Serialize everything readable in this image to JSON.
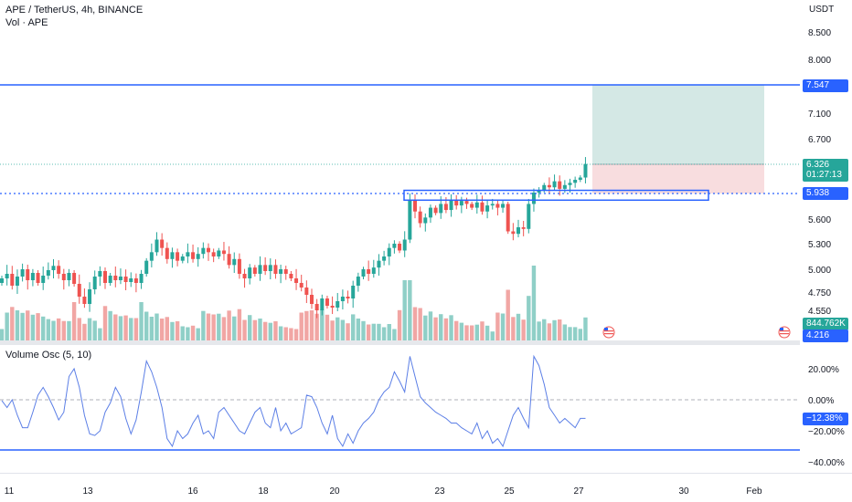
{
  "header": {
    "symbol": "APE / TetherUS, 4h, BINANCE",
    "vol_label": "Vol · APE",
    "currency": "USDT",
    "osc_label": "Volume Osc (5, 10)"
  },
  "colors": {
    "up": "#26a69a",
    "down": "#ef5350",
    "vol_up": "#8fcfc7",
    "vol_down": "#f1a6a4",
    "level_line": "#2962ff",
    "osc_line": "#5c7fe6",
    "target_zone": "#cfe5e2",
    "stop_zone": "#f7d9dc"
  },
  "tags": {
    "resistance": "7.547",
    "last_price": "6.326",
    "countdown": "01:27:13",
    "support": "5.938",
    "volume": "844.762K",
    "low_level": "4.216",
    "osc_value": "−12.38%"
  },
  "chart_data": [
    {
      "type": "candlestick",
      "title": "APE / TetherUS, 4h, BINANCE",
      "ylabel": "USDT",
      "y_ticks": [
        "8.500",
        "8.000",
        "7.547",
        "7.100",
        "6.700",
        "6.326",
        "5.938",
        "5.600",
        "5.300",
        "5.000",
        "4.750",
        "4.550",
        "4.216"
      ],
      "x_ticks": [
        "11",
        "13",
        "16",
        "18",
        "20",
        "23",
        "25",
        "27",
        "30",
        "Feb"
      ],
      "levels": {
        "resistance": 7.547,
        "support": 5.938,
        "last": 6.326,
        "bottom": 4.216
      },
      "consolidation_box": {
        "from": 5.85,
        "to": 5.98
      },
      "position": {
        "entry": 6.326,
        "target": 7.547,
        "stop": 5.938
      },
      "closes": [
        4.9,
        4.95,
        4.82,
        4.92,
        5.0,
        4.88,
        4.96,
        4.85,
        4.93,
        4.99,
        5.04,
        4.95,
        4.88,
        4.96,
        4.84,
        4.7,
        4.62,
        4.78,
        4.92,
        4.98,
        4.85,
        4.93,
        4.88,
        4.92,
        4.86,
        4.9,
        4.85,
        4.95,
        5.1,
        5.2,
        5.35,
        5.25,
        5.12,
        5.2,
        5.1,
        5.15,
        5.2,
        5.12,
        5.18,
        5.25,
        5.2,
        5.15,
        5.22,
        5.18,
        5.05,
        5.12,
        4.95,
        4.9,
        5.02,
        4.95,
        5.05,
        4.98,
        5.05,
        4.95,
        5.0,
        4.95,
        4.9,
        4.85,
        4.8,
        4.72,
        4.62,
        4.55,
        4.68,
        4.6,
        4.58,
        4.65,
        4.7,
        4.68,
        4.82,
        4.92,
        5.0,
        4.95,
        5.02,
        5.1,
        5.15,
        5.25,
        5.3,
        5.22,
        5.35,
        5.85,
        5.7,
        5.55,
        5.62,
        5.75,
        5.68,
        5.8,
        5.72,
        5.85,
        5.78,
        5.84,
        5.8,
        5.75,
        5.82,
        5.7,
        5.78,
        5.8,
        5.75,
        5.8,
        5.45,
        5.42,
        5.5,
        5.48,
        5.8,
        5.95,
        5.98,
        6.05,
        6.02,
        6.1,
        6.0,
        6.05,
        6.08,
        6.12,
        6.15,
        6.33
      ],
      "volume_osc_percent": [
        -0.5,
        -5,
        0,
        -10,
        -18,
        -18,
        -8,
        3,
        8,
        2,
        -5,
        -13,
        -8,
        15,
        20,
        8,
        -10,
        -22,
        -23,
        -20,
        -8,
        -2,
        8,
        2,
        -12,
        -22,
        -13,
        5,
        25,
        18,
        8,
        -5,
        -25,
        -30,
        -20,
        -25,
        -22,
        -15,
        -10,
        -22,
        -20,
        -25,
        -8,
        -5,
        -10,
        -15,
        -20,
        -22,
        -15,
        -8,
        -5,
        -15,
        -18,
        -5,
        -20,
        -15,
        -22,
        -20,
        -18,
        3,
        2,
        -5,
        -15,
        -22,
        -10,
        -25,
        -30,
        -22,
        -28,
        -20,
        -15,
        -12,
        -8,
        0,
        5,
        8,
        18,
        12,
        5,
        28,
        15,
        2,
        -2,
        -5,
        -8,
        -10,
        -12,
        -15,
        -15,
        -18,
        -20,
        -22,
        -15,
        -25,
        -20,
        -28,
        -25,
        -30,
        -20,
        -10,
        -5,
        -12,
        -18,
        28,
        22,
        10,
        -5,
        -10,
        -15,
        -12,
        -15,
        -18,
        -12,
        -12
      ],
      "osc_y_ticks": [
        "20.00%",
        "0.00%",
        "−20.00%",
        "−40.00%"
      ]
    }
  ]
}
